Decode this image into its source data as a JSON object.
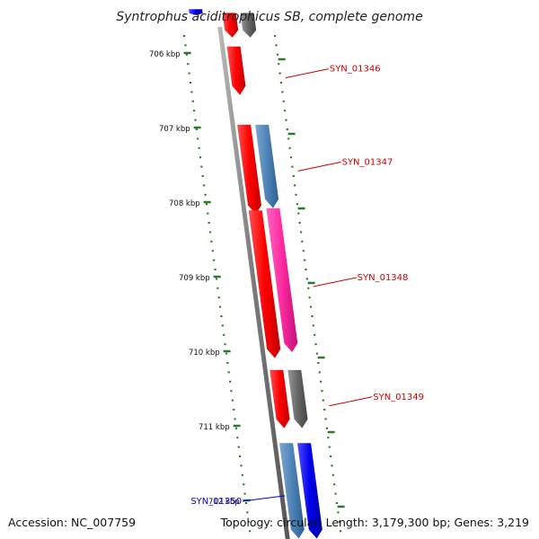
{
  "title": "Syntrophus aciditrophicus SB, complete genome",
  "footer": {
    "accession": "Accession: NC_007759",
    "topology": "Topology: circular; Length: 3,179,300 bp; Genes: 3,219"
  },
  "colors": {
    "backbone": "#8a8a8a",
    "tick": "#2a7a2a",
    "red": "#ff0000",
    "steelblue": "#4f84b8",
    "pink": "#ff2aa0",
    "gray": "#666666",
    "blue": "#0000ee",
    "label_red": "#cc0000",
    "label_blue": "#0000cc"
  },
  "ticks": [
    {
      "label": "706 kbp",
      "kbp": 706
    },
    {
      "label": "707 kbp",
      "kbp": 707
    },
    {
      "label": "708 kbp",
      "kbp": 708
    },
    {
      "label": "709 kbp",
      "kbp": 709
    },
    {
      "label": "710 kbp",
      "kbp": 710
    },
    {
      "label": "711 kbp",
      "kbp": 711
    },
    {
      "label": "712 kbp",
      "kbp": 712
    }
  ],
  "genes": [
    {
      "ring": 1,
      "start_kbp": 705.45,
      "end_kbp": 705.78,
      "color": "red"
    },
    {
      "ring": 2,
      "start_kbp": 705.45,
      "end_kbp": 705.78,
      "color": "gray"
    },
    {
      "ring": 1,
      "start_kbp": 705.9,
      "end_kbp": 706.55,
      "color": "red"
    },
    {
      "ring": 1,
      "start_kbp": 706.95,
      "end_kbp": 708.15,
      "color": "red"
    },
    {
      "ring": 2,
      "start_kbp": 706.95,
      "end_kbp": 708.07,
      "color": "steelblue"
    },
    {
      "ring": 1,
      "start_kbp": 708.1,
      "end_kbp": 710.08,
      "color": "red"
    },
    {
      "ring": 2,
      "start_kbp": 708.07,
      "end_kbp": 710.0,
      "color": "pink"
    },
    {
      "ring": 1,
      "start_kbp": 710.24,
      "end_kbp": 711.02,
      "color": "red"
    },
    {
      "ring": 2,
      "start_kbp": 710.24,
      "end_kbp": 711.02,
      "color": "gray"
    },
    {
      "ring": 1,
      "start_kbp": 711.22,
      "end_kbp": 712.5,
      "color": "steelblue"
    },
    {
      "ring": 2,
      "start_kbp": 711.22,
      "end_kbp": 712.5,
      "color": "blue"
    },
    {
      "ring": 0,
      "start_kbp": 705.4,
      "end_kbp": 705.48,
      "color": "blue"
    }
  ],
  "gene_labels": [
    {
      "name": "SYN_01346",
      "kbp": 706.2,
      "side": "right",
      "color": "label_red"
    },
    {
      "name": "SYN_01347",
      "kbp": 707.45,
      "side": "right",
      "color": "label_red"
    },
    {
      "name": "SYN_01348",
      "kbp": 709.0,
      "side": "right",
      "color": "label_red"
    },
    {
      "name": "SYN_01349",
      "kbp": 710.6,
      "side": "right",
      "color": "label_red"
    },
    {
      "name": "SYN_01350",
      "kbp": 711.95,
      "side": "left",
      "color": "label_blue"
    }
  ]
}
